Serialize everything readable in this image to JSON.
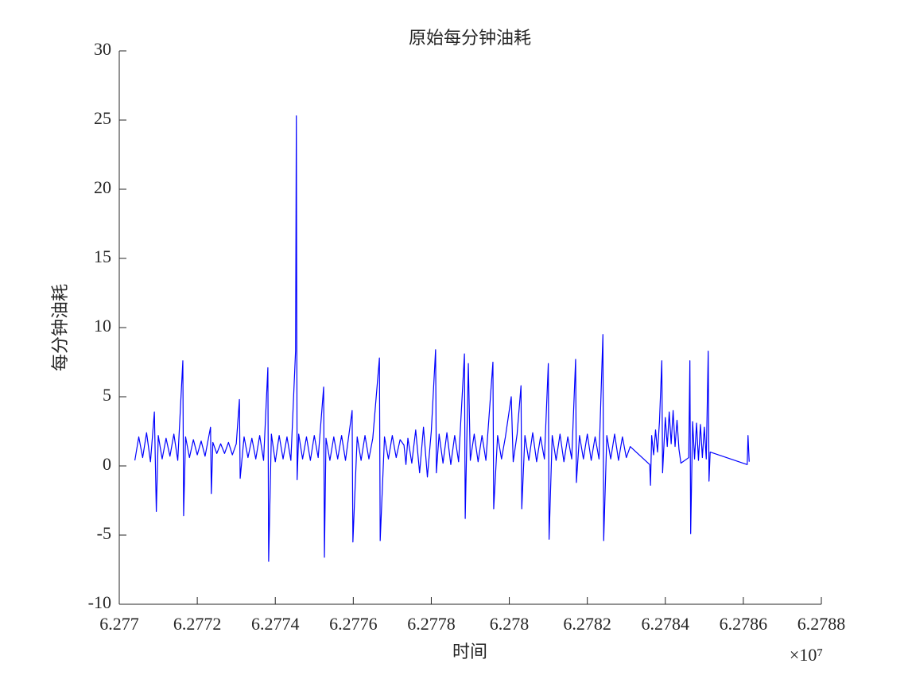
{
  "chart_data": {
    "type": "line",
    "title": "原始每分钟油耗",
    "xlabel": "时间",
    "ylabel": "每分钟油耗",
    "x_exponent_label": "×10⁷",
    "color": "#0000ff",
    "xlim": [
      6.277,
      6.2788
    ],
    "xticks": [
      6.277,
      6.2772,
      6.2774,
      6.2776,
      6.2778,
      6.278,
      6.2782,
      6.2784,
      6.2786,
      6.2788
    ],
    "ylim": [
      -10,
      30
    ],
    "yticks": [
      -10,
      -5,
      0,
      5,
      10,
      15,
      20,
      25,
      30
    ],
    "x": [
      6.27704,
      6.27705,
      6.27706,
      6.27707,
      6.27708,
      6.27709,
      6.277095,
      6.2771,
      6.27711,
      6.27712,
      6.27713,
      6.27714,
      6.27715,
      6.277163,
      6.277165,
      6.27717,
      6.27718,
      6.27719,
      6.2772,
      6.27721,
      6.27722,
      6.277234,
      6.277236,
      6.27724,
      6.27725,
      6.27726,
      6.27727,
      6.27728,
      6.27729,
      6.2773,
      6.277308,
      6.27731,
      6.27732,
      6.27733,
      6.27734,
      6.27735,
      6.27736,
      6.27737,
      6.277381,
      6.277383,
      6.27739,
      6.2774,
      6.27741,
      6.27742,
      6.27743,
      6.27744,
      6.277452,
      6.277454,
      6.277456,
      6.27746,
      6.27747,
      6.27748,
      6.27749,
      6.2775,
      6.27751,
      6.277524,
      6.277526,
      6.27753,
      6.27754,
      6.27755,
      6.27756,
      6.27757,
      6.27758,
      6.277597,
      6.277599,
      6.27761,
      6.27762,
      6.27763,
      6.27764,
      6.27765,
      6.277667,
      6.277669,
      6.27768,
      6.27769,
      6.2777,
      6.27771,
      6.27772,
      6.27773,
      6.277735,
      6.27774,
      6.27775,
      6.27776,
      6.27777,
      6.27778,
      6.27779,
      6.2778,
      6.277811,
      6.277813,
      6.27782,
      6.27783,
      6.27784,
      6.27785,
      6.27786,
      6.27787,
      6.277885,
      6.277887,
      6.277895,
      6.2779,
      6.27791,
      6.27792,
      6.27793,
      6.27794,
      6.277958,
      6.27796,
      6.27797,
      6.27798,
      6.27799,
      6.278005,
      6.27801,
      6.27802,
      6.27803,
      6.278032,
      6.27804,
      6.27805,
      6.27806,
      6.27807,
      6.27808,
      6.27809,
      6.2781,
      6.278102,
      6.27811,
      6.27812,
      6.27813,
      6.27814,
      6.27815,
      6.27816,
      6.27817,
      6.278172,
      6.27818,
      6.27819,
      6.2782,
      6.27821,
      6.27822,
      6.27823,
      6.27824,
      6.278242,
      6.27825,
      6.27826,
      6.27827,
      6.27828,
      6.27829,
      6.2783,
      6.27831,
      6.27836,
      6.278362,
      6.278365,
      6.27837,
      6.278375,
      6.27838,
      6.278385,
      6.278391,
      6.278393,
      6.2784,
      6.278405,
      6.27841,
      6.278415,
      6.27842,
      6.278425,
      6.27843,
      6.278435,
      6.27844,
      6.27846,
      6.278463,
      6.278465,
      6.27847,
      6.278475,
      6.27848,
      6.278485,
      6.27849,
      6.278495,
      6.2785,
      6.278505,
      6.27851,
      6.278512,
      6.278515,
      6.27861,
      6.278612,
      6.278615
    ],
    "values": [
      0.4,
      2.1,
      0.6,
      2.4,
      0.3,
      3.9,
      -3.3,
      2.2,
      0.5,
      2.0,
      0.7,
      2.3,
      0.4,
      7.6,
      -3.6,
      2.1,
      0.6,
      1.9,
      0.8,
      1.8,
      0.7,
      2.8,
      -2.0,
      1.7,
      0.9,
      1.6,
      0.9,
      1.7,
      0.8,
      1.6,
      4.8,
      -0.9,
      2.1,
      0.6,
      2.0,
      0.5,
      2.2,
      0.4,
      7.1,
      -6.9,
      2.3,
      0.3,
      2.2,
      0.5,
      2.1,
      0.4,
      8.3,
      25.3,
      -1.0,
      2.3,
      0.5,
      2.1,
      0.4,
      2.2,
      0.6,
      5.7,
      -6.6,
      2.0,
      0.4,
      2.1,
      0.5,
      2.2,
      0.4,
      4.0,
      -5.5,
      2.1,
      0.4,
      2.2,
      0.5,
      2.0,
      7.8,
      -5.4,
      2.1,
      0.5,
      2.2,
      0.6,
      1.9,
      1.5,
      0.1,
      2.0,
      0.2,
      2.6,
      -0.5,
      2.8,
      -0.8,
      2.5,
      8.4,
      -0.5,
      2.3,
      0.2,
      2.4,
      0.1,
      2.2,
      0.3,
      8.1,
      -3.8,
      7.4,
      0.4,
      2.3,
      0.3,
      2.2,
      0.4,
      7.5,
      -3.1,
      2.2,
      0.5,
      2.1,
      5.0,
      0.3,
      2.3,
      5.8,
      -3.1,
      2.2,
      0.4,
      2.4,
      0.3,
      2.1,
      0.5,
      7.4,
      -5.3,
      2.2,
      0.4,
      2.3,
      0.3,
      2.1,
      0.5,
      7.7,
      -1.2,
      2.2,
      0.5,
      2.3,
      0.4,
      2.1,
      0.5,
      9.5,
      -5.4,
      2.2,
      0.5,
      2.3,
      0.4,
      2.1,
      0.6,
      1.4,
      0.1,
      -1.4,
      2.2,
      0.8,
      2.6,
      1.0,
      3.2,
      7.6,
      -0.5,
      3.5,
      1.4,
      3.9,
      1.6,
      4.0,
      1.4,
      3.3,
      1.2,
      0.2,
      0.6,
      7.6,
      -4.9,
      3.2,
      0.5,
      3.1,
      0.4,
      3.0,
      0.6,
      2.8,
      0.5,
      8.3,
      -1.1,
      1.0,
      0.1,
      2.2,
      0.3
    ]
  }
}
